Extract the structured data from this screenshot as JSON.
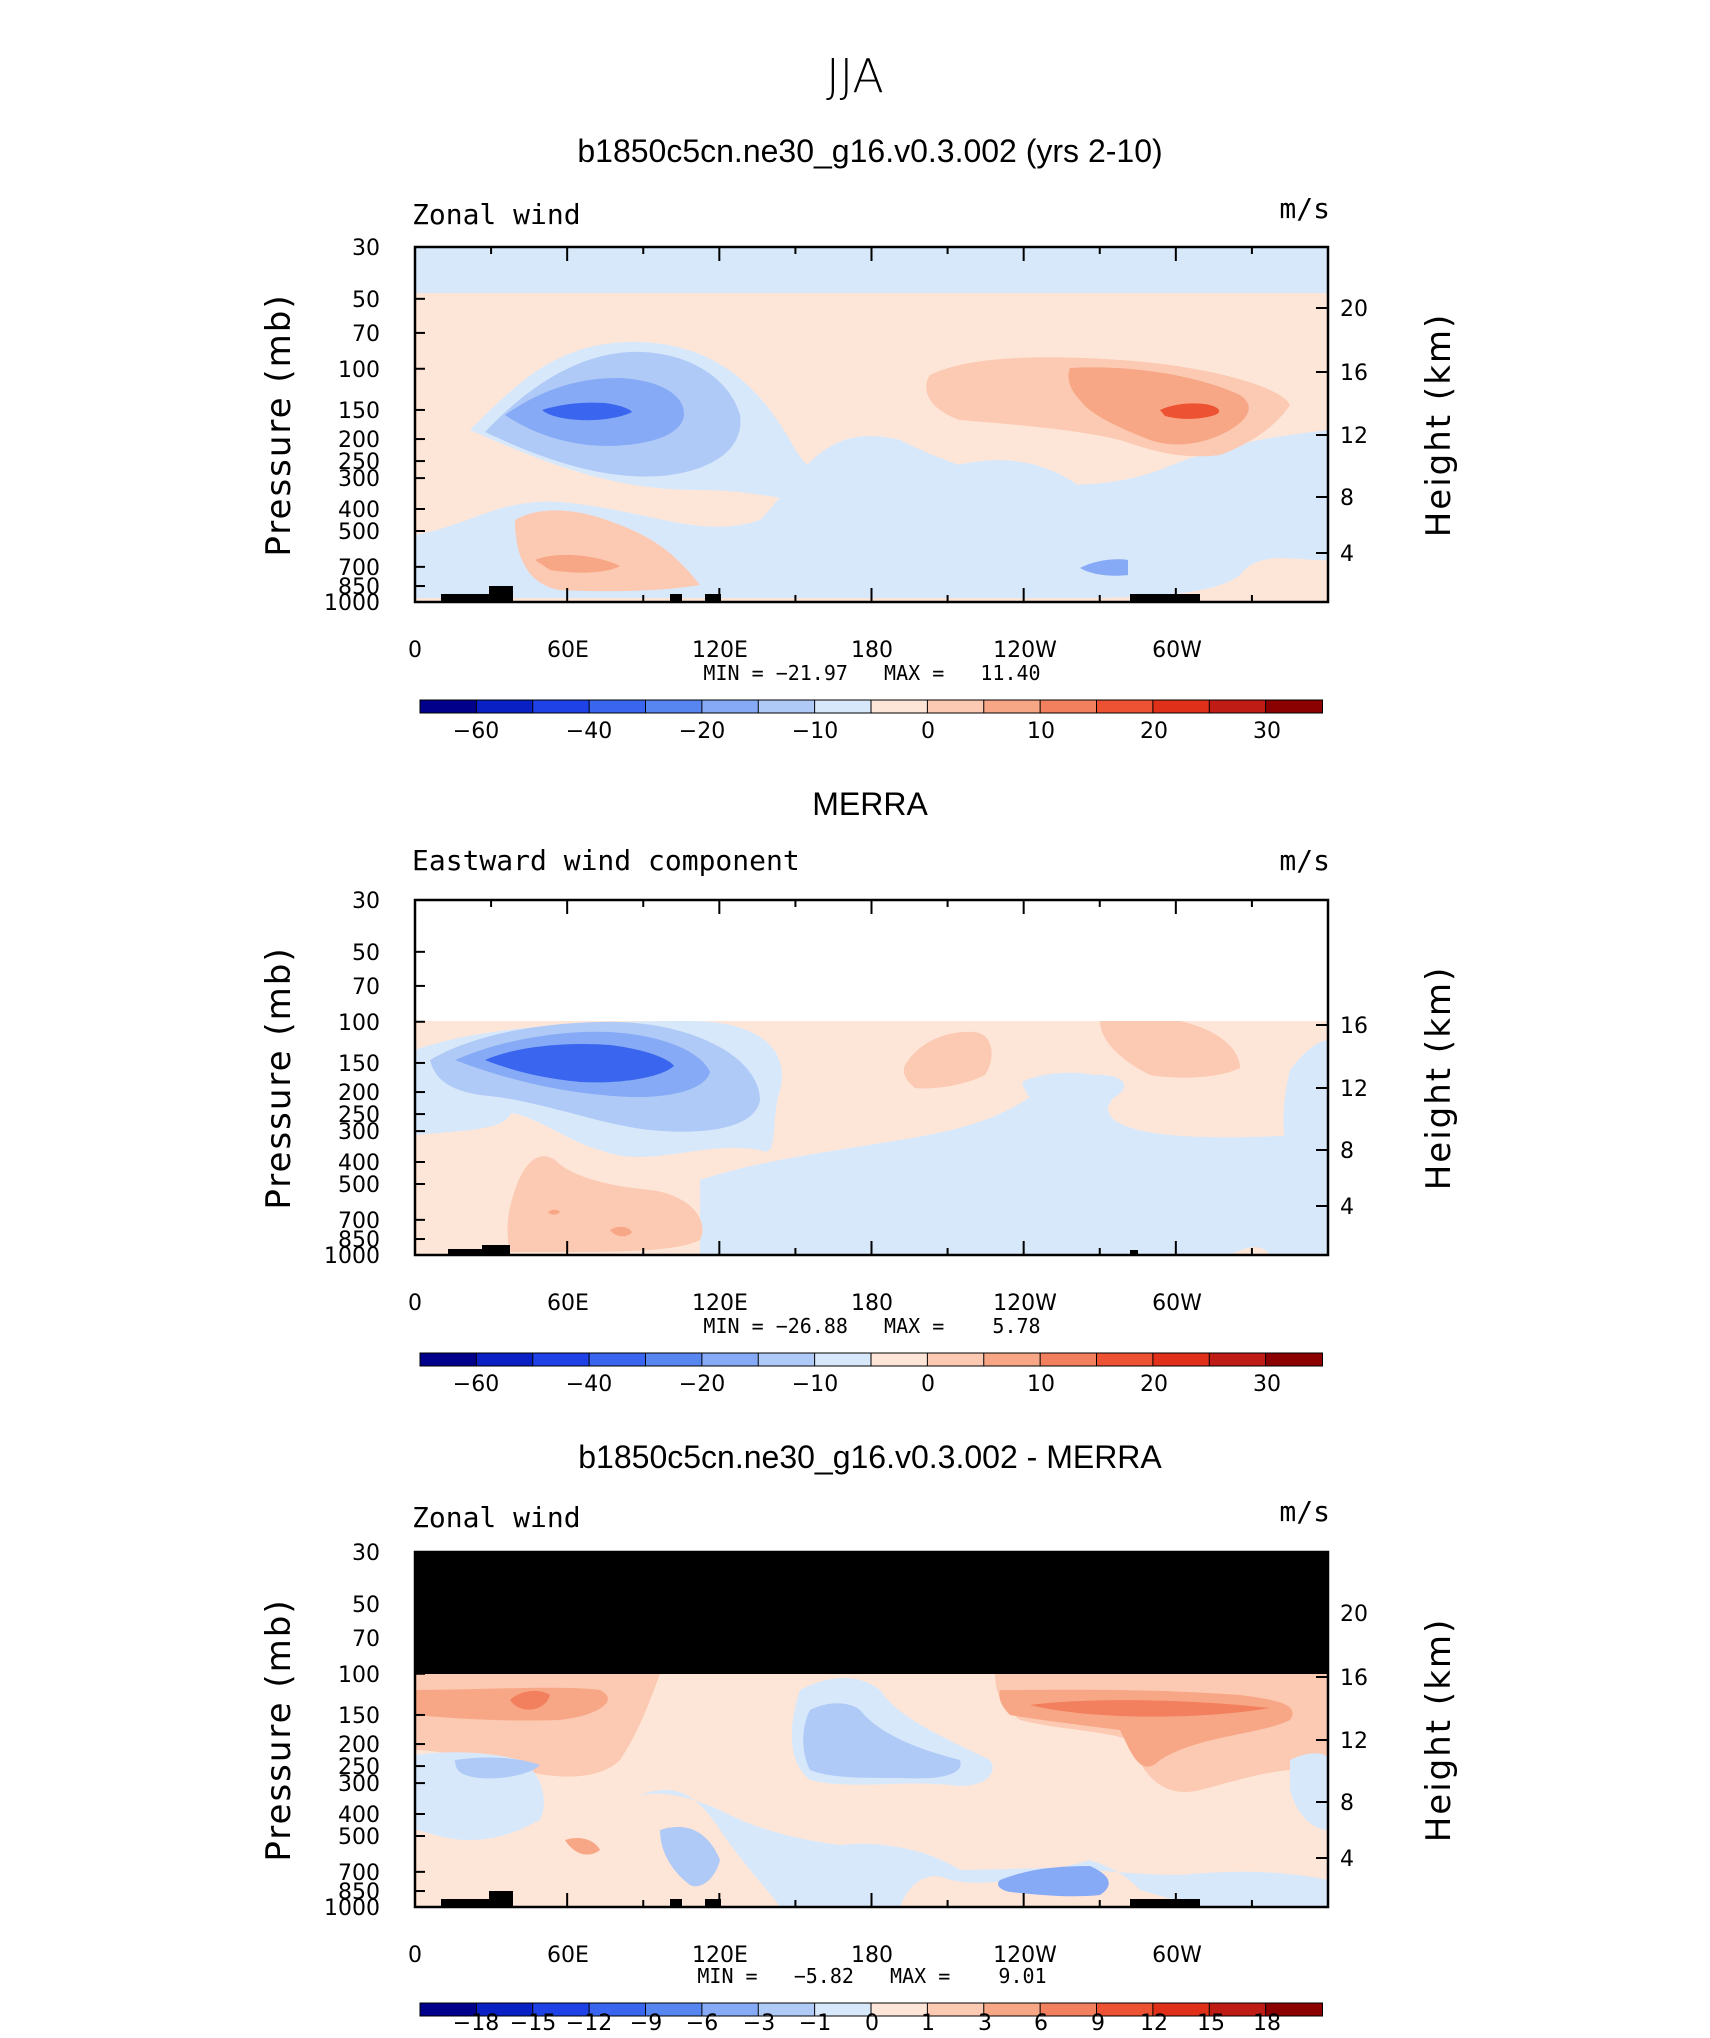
{
  "page": {
    "title": "JJA"
  },
  "colors": {
    "cb_palette": [
      "#00008b",
      "#0820c4",
      "#1e42e6",
      "#3a66ef",
      "#5886f0",
      "#86aaf5",
      "#b0caf7",
      "#d8e8fb",
      "#fde6d8",
      "#fcc9b2",
      "#f7a785",
      "#f2805e",
      "#ed5233",
      "#e0301a",
      "#c01c16",
      "#8b0000"
    ]
  },
  "panels": [
    {
      "id": "model",
      "title": "b1850c5cn.ne30_g16.v0.3.002 (yrs 2-10)",
      "left_label": "Zonal wind",
      "right_label": "m/s",
      "ylabel": "Pressure (mb)",
      "ylabel2": "Height (km)",
      "stats": "MIN = −21.97   MAX =   11.40",
      "cb_labels": [
        "−60",
        "−40",
        "−20",
        "−10",
        "0",
        "10",
        "20",
        "30"
      ]
    },
    {
      "id": "obs",
      "title": "MERRA",
      "left_label": "Eastward wind component",
      "right_label": "m/s",
      "ylabel": "Pressure (mb)",
      "ylabel2": "Height (km)",
      "stats": "MIN = −26.88   MAX =    5.78",
      "cb_labels": [
        "−60",
        "−40",
        "−20",
        "−10",
        "0",
        "10",
        "20",
        "30"
      ]
    },
    {
      "id": "diff",
      "title": "b1850c5cn.ne30_g16.v0.3.002 - MERRA",
      "left_label": "Zonal wind",
      "right_label": "m/s",
      "ylabel": "Pressure (mb)",
      "ylabel2": "Height (km)",
      "stats": "MIN =   −5.82   MAX =    9.01",
      "cb_labels": [
        "−18",
        "−15",
        "−12",
        "−9",
        "−6",
        "−3",
        "−1",
        "0",
        "1",
        "3",
        "6",
        "9",
        "12",
        "15",
        "18"
      ]
    }
  ],
  "chart_data": [
    {
      "type": "heatmap",
      "title": "b1850c5cn.ne30_g16.v0.3.002 (yrs 2-10)",
      "xlabel": "",
      "ylabel": "Pressure (mb)",
      "x_ticks": [
        "0",
        "60E",
        "120E",
        "180",
        "120W",
        "60W"
      ],
      "y_ticks": [
        "30",
        "50",
        "70",
        "100",
        "150",
        "200",
        "250",
        "300",
        "400",
        "500",
        "700",
        "850",
        "1000"
      ],
      "y2_ticks": [
        "20",
        "16",
        "12",
        "8",
        "4"
      ],
      "xlim": [
        0,
        360
      ],
      "ylim": [
        1000,
        30
      ],
      "levels": [
        -60,
        -40,
        -20,
        -10,
        0,
        10,
        20,
        30
      ],
      "min": -21.97,
      "max": 11.4
    },
    {
      "type": "heatmap",
      "title": "MERRA",
      "xlabel": "",
      "ylabel": "Pressure (mb)",
      "x_ticks": [
        "0",
        "60E",
        "120E",
        "180",
        "120W",
        "60W"
      ],
      "y_ticks": [
        "30",
        "50",
        "70",
        "100",
        "150",
        "200",
        "250",
        "300",
        "400",
        "500",
        "700",
        "850",
        "1000"
      ],
      "y2_ticks": [
        "16",
        "12",
        "8",
        "4"
      ],
      "xlim": [
        0,
        360
      ],
      "ylim": [
        1000,
        30
      ],
      "levels": [
        -60,
        -40,
        -20,
        -10,
        0,
        10,
        20,
        30
      ],
      "min": -26.88,
      "max": 5.78
    },
    {
      "type": "heatmap",
      "title": "b1850c5cn.ne30_g16.v0.3.002 - MERRA",
      "xlabel": "",
      "ylabel": "Pressure (mb)",
      "x_ticks": [
        "0",
        "60E",
        "120E",
        "180",
        "120W",
        "60W"
      ],
      "y_ticks": [
        "30",
        "50",
        "70",
        "100",
        "150",
        "200",
        "250",
        "300",
        "400",
        "500",
        "700",
        "850",
        "1000"
      ],
      "y2_ticks": [
        "20",
        "16",
        "12",
        "8",
        "4"
      ],
      "xlim": [
        0,
        360
      ],
      "ylim": [
        1000,
        30
      ],
      "levels": [
        -18,
        -15,
        -12,
        -9,
        -6,
        -3,
        -1,
        0,
        1,
        3,
        6,
        9,
        12,
        15,
        18
      ],
      "min": -5.82,
      "max": 9.01
    }
  ]
}
